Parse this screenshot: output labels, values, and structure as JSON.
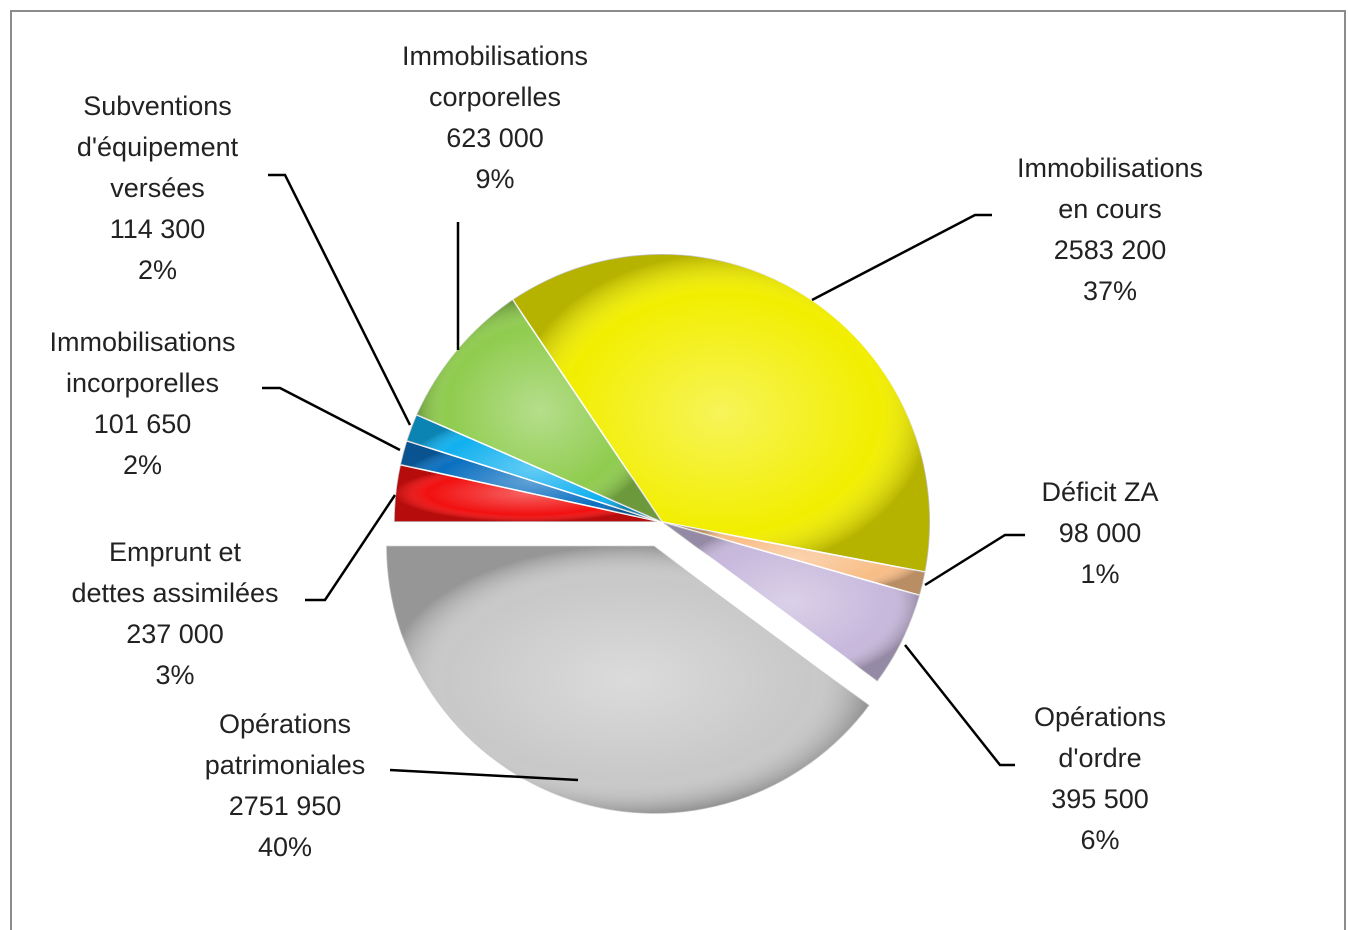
{
  "chart_data": {
    "type": "pie",
    "categories": [
      "Immobilisations en cours",
      "Déficit ZA",
      "Opérations d'ordre",
      "Opérations patrimoniales",
      "Emprunt et dettes assimilées",
      "Immobilisations incorporelles",
      "Subventions d'équipement versées",
      "Immobilisations corporelles"
    ],
    "values": [
      2583200,
      98000,
      395500,
      2751950,
      237000,
      101650,
      114300,
      623000
    ],
    "value_labels": [
      "2583 200",
      "98 000",
      "395 500",
      "2751 950",
      "237 000",
      "101 650",
      "114 300",
      "623 000"
    ],
    "percentages": [
      37,
      1,
      6,
      40,
      3,
      2,
      2,
      9
    ],
    "percent_labels": [
      "37%",
      "1%",
      "6%",
      "40%",
      "3%",
      "2%",
      "2%",
      "9%"
    ],
    "colors": [
      "#f2ee00",
      "#f8bd86",
      "#c7b8dc",
      "#c8c8c8",
      "#f21010",
      "#0a6fc0",
      "#10b0ef",
      "#8fcc4e"
    ],
    "exploded": [
      false,
      false,
      false,
      true,
      false,
      false,
      false,
      false
    ]
  }
}
